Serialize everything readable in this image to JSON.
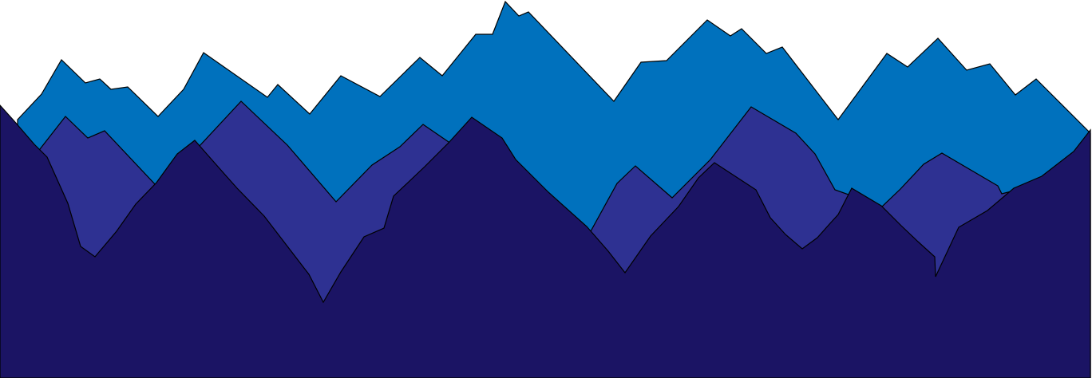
{
  "scene": {
    "background_color": "#ffffff",
    "outline_color": "#000000",
    "layers": [
      {
        "name": "back-mountain-range",
        "color": "#0071bd"
      },
      {
        "name": "middle-mountain-range",
        "color": "#2e3192"
      },
      {
        "name": "front-mountain-range",
        "color": "#1b1464"
      }
    ]
  }
}
